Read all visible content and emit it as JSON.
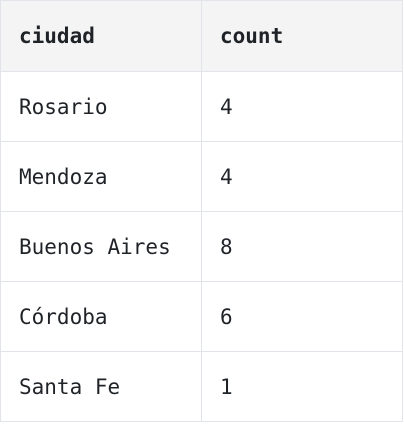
{
  "table": {
    "headers": [
      "ciudad",
      "count"
    ],
    "rows": [
      [
        "Rosario",
        "4"
      ],
      [
        "Mendoza",
        "4"
      ],
      [
        "Buenos Aires",
        "8"
      ],
      [
        "Córdoba",
        "6"
      ],
      [
        "Santa Fe",
        "1"
      ]
    ]
  }
}
